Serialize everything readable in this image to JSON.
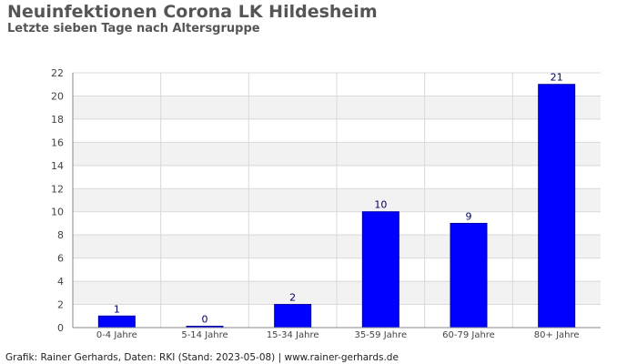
{
  "header": {
    "title": "Neuinfektionen Corona LK Hildesheim",
    "subtitle": "Letzte sieben Tage nach Altersgruppe"
  },
  "footer": {
    "credit": "Grafik: Rainer Gerhards, Daten: RKI (Stand: 2023-05-08) | www.rainer-gerhards.de"
  },
  "colors": {
    "bar": "#0000ff",
    "bar_stroke": "#0000aa",
    "value_label": "#000066",
    "grid_band": "#f2f2f2",
    "grid_line": "#d9d9d9",
    "axis_text": "#444444"
  },
  "chart_data": {
    "type": "bar",
    "title": "Neuinfektionen Corona LK Hildesheim",
    "subtitle": "Letzte sieben Tage nach Altersgruppe",
    "categories": [
      "0-4 Jahre",
      "5-14 Jahre",
      "15-34 Jahre",
      "35-59 Jahre",
      "60-79 Jahre",
      "80+ Jahre"
    ],
    "values": [
      1,
      0,
      2,
      10,
      9,
      21
    ],
    "ylim": [
      0,
      22
    ],
    "yticks": [
      0,
      2,
      4,
      6,
      8,
      10,
      12,
      14,
      16,
      18,
      20,
      22
    ],
    "xlabel": "",
    "ylabel": "",
    "grid": true,
    "legend": "none",
    "data_labels": true
  }
}
